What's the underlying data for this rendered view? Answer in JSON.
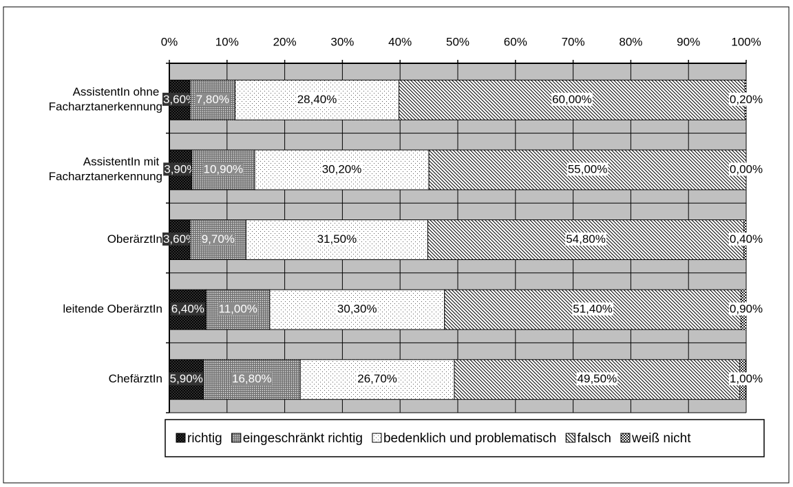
{
  "chart_data": {
    "type": "stacked_barh",
    "categories": [
      "AssistentIn ohne Facharztanerkennung",
      "AssistentIn mit Facharztanerkennung",
      "OberärztIn",
      "leitende OberärztIn",
      "ChefärztIn"
    ],
    "series": [
      {
        "name": "richtig",
        "color": "#404040",
        "values": [
          3.6,
          3.9,
          3.6,
          6.4,
          5.9
        ],
        "value_labels": [
          "3,60%",
          "3,90%",
          "3,60%",
          "6,40%",
          "5,90%"
        ]
      },
      {
        "name": "eingeschränkt richtig",
        "color": "#8c8c8c",
        "values": [
          7.8,
          10.9,
          9.7,
          11.0,
          16.8
        ],
        "value_labels": [
          "7,80%",
          "10,90%",
          "9,70%",
          "11,00%",
          "16,80%"
        ]
      },
      {
        "name": "bedenklich und problematisch",
        "color": "#ffffff",
        "values": [
          28.4,
          30.2,
          31.5,
          30.3,
          26.7
        ],
        "value_labels": [
          "28,40%",
          "30,20%",
          "31,50%",
          "30,30%",
          "26,70%"
        ]
      },
      {
        "name": "falsch",
        "color": "#ffffff",
        "values": [
          60.0,
          55.0,
          54.8,
          51.4,
          49.5
        ],
        "value_labels": [
          "60,00%",
          "55,00%",
          "54,80%",
          "51,40%",
          "49,50%"
        ]
      },
      {
        "name": "weiß nicht",
        "color": "#202020",
        "values": [
          0.2,
          0.0,
          0.4,
          0.9,
          1.0
        ],
        "value_labels": [
          "0,20%",
          "0,00%",
          "0,40%",
          "0,90%",
          "1,00%"
        ]
      }
    ],
    "xlim": [
      0,
      100
    ],
    "xticks": [
      {
        "value": 0,
        "label": "0%"
      },
      {
        "value": 10,
        "label": "10%"
      },
      {
        "value": 20,
        "label": "20%"
      },
      {
        "value": 30,
        "label": "30%"
      },
      {
        "value": 40,
        "label": "40%"
      },
      {
        "value": 50,
        "label": "50%"
      },
      {
        "value": 60,
        "label": "60%"
      },
      {
        "value": 70,
        "label": "70%"
      },
      {
        "value": 80,
        "label": "80%"
      },
      {
        "value": 90,
        "label": "90%"
      },
      {
        "value": 100,
        "label": "100%"
      }
    ],
    "grid": true,
    "legend": "bottom"
  }
}
